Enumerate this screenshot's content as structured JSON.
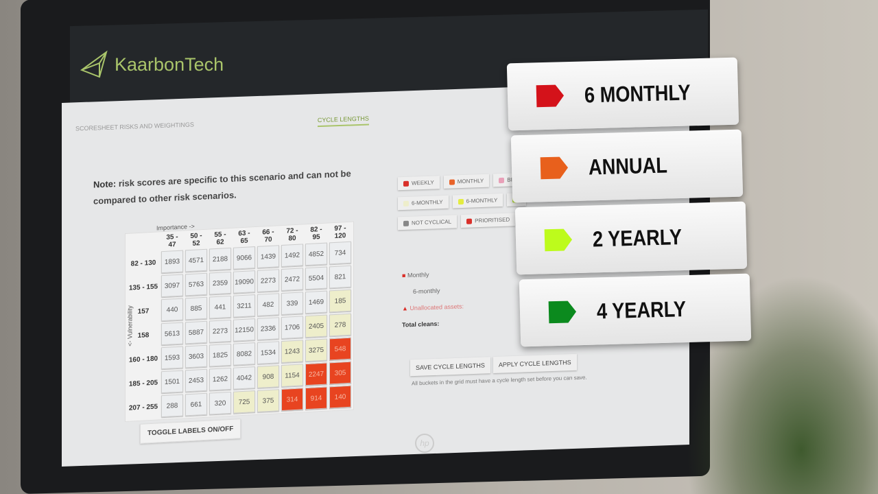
{
  "app": {
    "brand": "KaarbonTech"
  },
  "tabs": [
    {
      "label": "SCORESHEET RISKS AND WEIGHTINGS",
      "active": false
    },
    {
      "label": "CYCLE LENGTHS",
      "active": true
    }
  ],
  "note": {
    "bold": "Note:",
    "text": " risk scores are specific to this scenario and can not be compared to other risk scenarios."
  },
  "grid": {
    "x_label": "Importance ->",
    "y_label": "<- Vulnerability",
    "columns": [
      "35 - 47",
      "50 - 52",
      "55 - 62",
      "63 - 65",
      "66 - 70",
      "72 - 80",
      "82 - 95",
      "97 - 120"
    ],
    "rows": [
      {
        "label": "82 - 130",
        "cells": [
          "1893",
          "4571",
          "2188",
          "9066",
          "1439",
          "1492",
          "4852",
          "734"
        ],
        "colors": [
          "n",
          "n",
          "n",
          "n",
          "n",
          "n",
          "n",
          "n"
        ]
      },
      {
        "label": "135 - 155",
        "cells": [
          "3097",
          "5763",
          "2359",
          "19090",
          "2273",
          "2472",
          "5504",
          "821"
        ],
        "colors": [
          "n",
          "n",
          "n",
          "n",
          "n",
          "n",
          "n",
          "n"
        ]
      },
      {
        "label": "157",
        "cells": [
          "440",
          "885",
          "441",
          "3211",
          "482",
          "339",
          "1469",
          "185"
        ],
        "colors": [
          "n",
          "n",
          "n",
          "n",
          "n",
          "n",
          "n",
          "y"
        ]
      },
      {
        "label": "158",
        "cells": [
          "5613",
          "5887",
          "2273",
          "12150",
          "2336",
          "1706",
          "2405",
          "278"
        ],
        "colors": [
          "n",
          "n",
          "n",
          "n",
          "n",
          "n",
          "y",
          "y"
        ]
      },
      {
        "label": "160 - 180",
        "cells": [
          "1593",
          "3603",
          "1825",
          "8082",
          "1534",
          "1243",
          "3275",
          "548"
        ],
        "colors": [
          "n",
          "n",
          "n",
          "n",
          "n",
          "y",
          "y",
          "r"
        ]
      },
      {
        "label": "185 - 205",
        "cells": [
          "1501",
          "2453",
          "1262",
          "4042",
          "908",
          "1154",
          "2247",
          "305"
        ],
        "colors": [
          "n",
          "n",
          "n",
          "n",
          "y",
          "y",
          "r",
          "r"
        ]
      },
      {
        "label": "207 - 255",
        "cells": [
          "288",
          "661",
          "320",
          "725",
          "375",
          "314",
          "914",
          "140"
        ],
        "colors": [
          "n",
          "n",
          "n",
          "y",
          "y",
          "r",
          "r",
          "r"
        ]
      }
    ],
    "toggle_label": "TOGGLE LABELS ON/OFF"
  },
  "legend": [
    [
      {
        "label": "WEEKLY",
        "color": "#d9302a"
      },
      {
        "label": "MONTHLY",
        "color": "#e8632a"
      },
      {
        "label": "BI-",
        "color": "#e8a0b8"
      }
    ],
    [
      {
        "label": "6-MONTHLY",
        "color": "#eeeecb"
      },
      {
        "label": "6-MONTHLY",
        "color": "#e4ec40"
      },
      {
        "label": "",
        "color": "#b8e040"
      }
    ],
    [
      {
        "label": "NOT CYCLICAL",
        "color": "#888888"
      },
      {
        "label": "PRIORITISED",
        "color": "#d9302a"
      }
    ]
  ],
  "summary": {
    "monthly": "Monthly",
    "six_monthly": "6-monthly",
    "unallocated": "Unallocated assets:",
    "total": "Total cleans:"
  },
  "buttons": {
    "save": "SAVE CYCLE LENGTHS",
    "apply": "APPLY CYCLE LENGTHS"
  },
  "hint": "All buckets in the grid must have a cycle length set before you can save.",
  "monitor_brand": "hp",
  "cards": [
    {
      "label": "6 MONTHLY",
      "color": "#d4121a"
    },
    {
      "label": "ANNUAL",
      "color": "#e8601c"
    },
    {
      "label": "2 YEARLY",
      "color": "#bdfb1c"
    },
    {
      "label": "4 YEARLY",
      "color": "#0b8a1e"
    }
  ]
}
